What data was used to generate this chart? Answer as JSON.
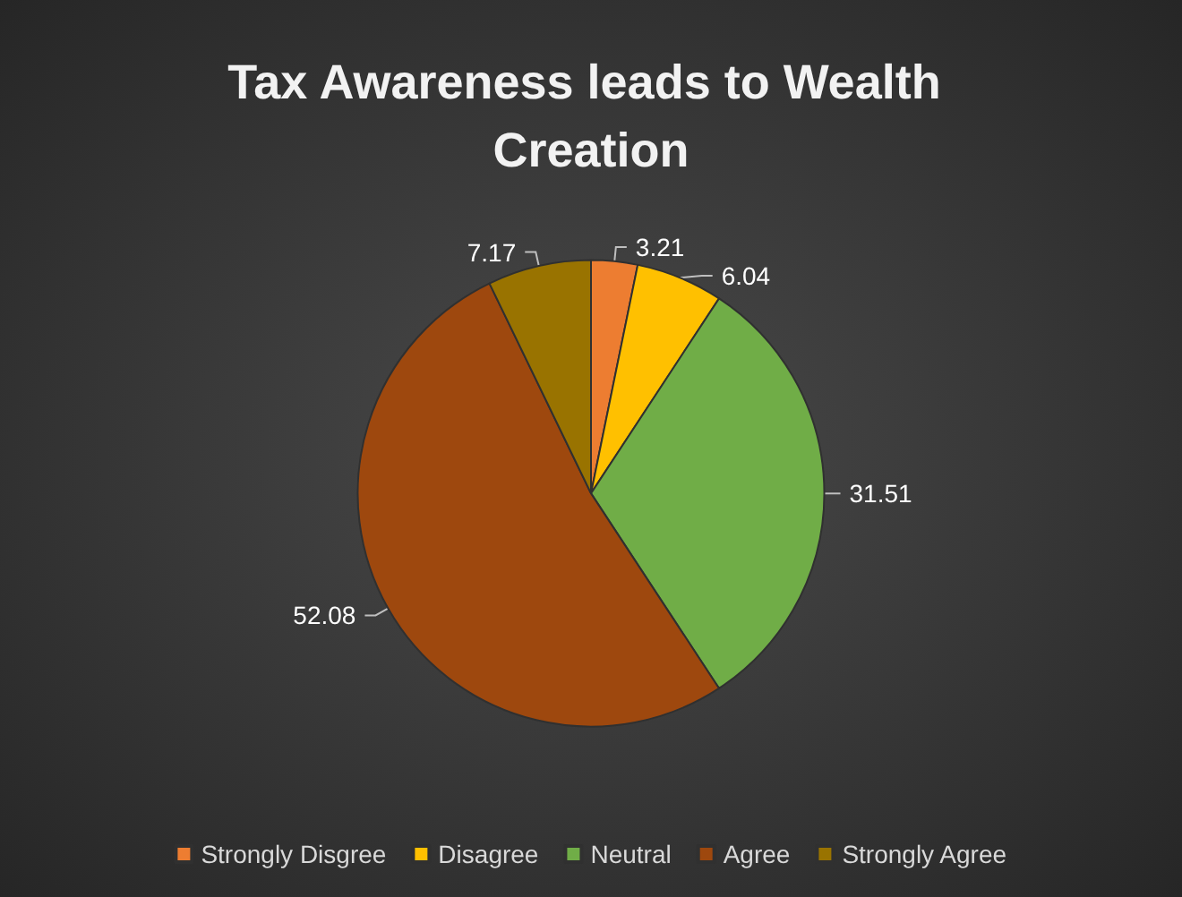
{
  "chart_data": {
    "type": "pie",
    "title": "Tax Awareness leads to Wealth Creation",
    "categories": [
      "Strongly Disgree",
      "Disagree",
      "Neutral",
      "Agree",
      "Strongly Agree"
    ],
    "values": [
      3.21,
      6.04,
      31.51,
      52.08,
      7.17
    ],
    "colors": [
      "#ed7d31",
      "#ffc000",
      "#70ad47",
      "#9e480e",
      "#997300"
    ],
    "data_labels": true,
    "legend": "bottom"
  }
}
